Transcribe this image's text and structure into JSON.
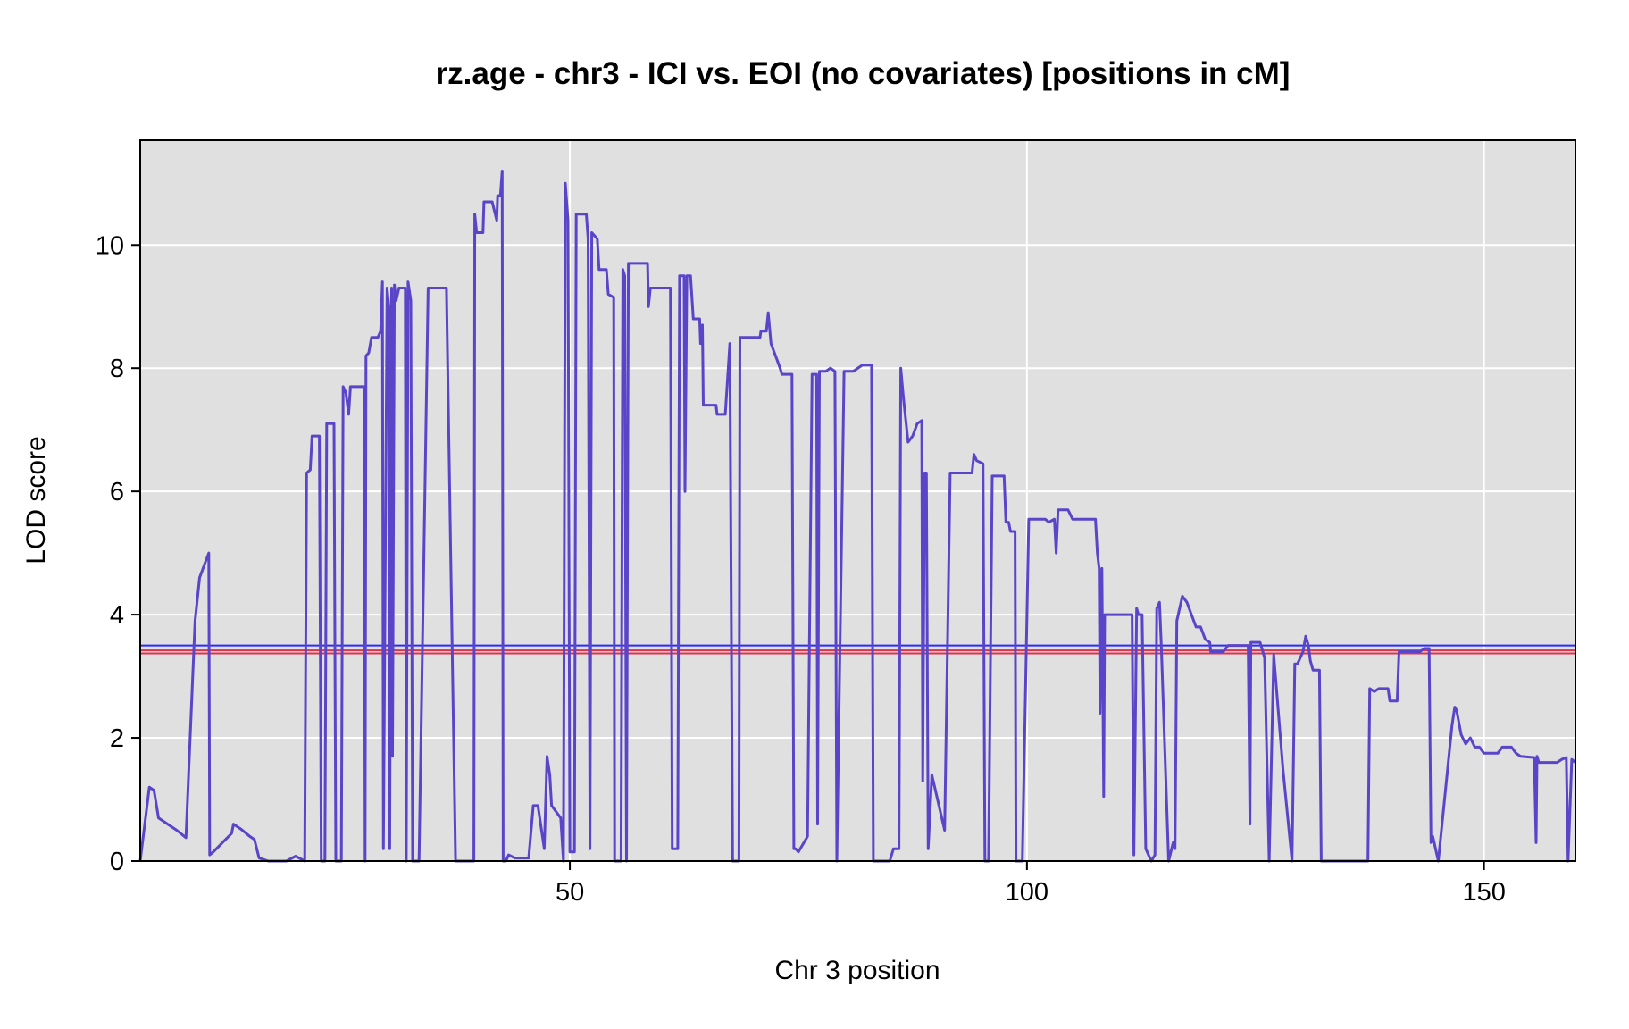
{
  "chart_data": {
    "type": "line",
    "title": "rz.age - chr3 - ICI vs. EOI (no covariates) [positions in cM]",
    "xlabel": "Chr 3 position",
    "ylabel": "LOD score",
    "xlim": [
      3,
      160
    ],
    "ylim": [
      0,
      11.7
    ],
    "x_ticks": [
      50,
      100,
      150
    ],
    "y_ticks": [
      0,
      2,
      4,
      6,
      8,
      10
    ],
    "grid": true,
    "colors": {
      "panel_background": "#e0e0e0",
      "grid": "#ffffff",
      "series": "#5a45c8",
      "threshold_blue": "#2a2aff",
      "threshold_red": "#e0304a"
    },
    "thresholds": [
      {
        "value": 3.5,
        "color": "#2a2aff"
      },
      {
        "value": 3.42,
        "color": "#e0304a"
      },
      {
        "value": 3.37,
        "color": "#e0304a"
      }
    ],
    "series": [
      {
        "points": [
          [
            3,
            0
          ],
          [
            4,
            1.2
          ],
          [
            4.5,
            1.15
          ],
          [
            5,
            0.7
          ],
          [
            6,
            0.6
          ],
          [
            7,
            0.5
          ],
          [
            8,
            0.38
          ],
          [
            9,
            3.9
          ],
          [
            9.5,
            4.6
          ],
          [
            10,
            4.8
          ],
          [
            10.5,
            5.0
          ],
          [
            10.6,
            0.1
          ],
          [
            11,
            0.15
          ],
          [
            12,
            0.3
          ],
          [
            13,
            0.45
          ],
          [
            13.2,
            0.6
          ],
          [
            14,
            0.52
          ],
          [
            15,
            0.4
          ],
          [
            15.5,
            0.35
          ],
          [
            16,
            0.05
          ],
          [
            17,
            0
          ],
          [
            19,
            0
          ],
          [
            20,
            0.08
          ],
          [
            21,
            0
          ],
          [
            21.2,
            6.3
          ],
          [
            21.6,
            6.35
          ],
          [
            21.8,
            6.9
          ],
          [
            22.6,
            6.9
          ],
          [
            22.8,
            0
          ],
          [
            23.2,
            0
          ],
          [
            23.4,
            7.1
          ],
          [
            24.2,
            7.1
          ],
          [
            24.4,
            0
          ],
          [
            25,
            0
          ],
          [
            25.2,
            7.7
          ],
          [
            25.5,
            7.6
          ],
          [
            25.8,
            7.25
          ],
          [
            26,
            7.7
          ],
          [
            27.5,
            7.7
          ],
          [
            27.6,
            0
          ],
          [
            27.7,
            8.2
          ],
          [
            28,
            8.25
          ],
          [
            28.3,
            8.5
          ],
          [
            29,
            8.5
          ],
          [
            29.3,
            8.6
          ],
          [
            29.5,
            9.4
          ],
          [
            29.6,
            0.2
          ],
          [
            30,
            9.3
          ],
          [
            30.2,
            9.0
          ],
          [
            30.3,
            0.2
          ],
          [
            30.5,
            9.3
          ],
          [
            30.6,
            1.7
          ],
          [
            30.8,
            9.35
          ],
          [
            31,
            9.1
          ],
          [
            31.3,
            9.3
          ],
          [
            32,
            9.3
          ],
          [
            32.1,
            0
          ],
          [
            32.3,
            9.4
          ],
          [
            32.6,
            9.1
          ],
          [
            32.8,
            0
          ],
          [
            33.5,
            0
          ],
          [
            34.5,
            9.3
          ],
          [
            36.5,
            9.3
          ],
          [
            37.5,
            0
          ],
          [
            38.5,
            0
          ],
          [
            39.5,
            0
          ],
          [
            39.6,
            10.5
          ],
          [
            39.8,
            10.2
          ],
          [
            40.5,
            10.2
          ],
          [
            40.6,
            10.7
          ],
          [
            41.5,
            10.7
          ],
          [
            42,
            10.4
          ],
          [
            42.1,
            10.8
          ],
          [
            42.4,
            10.8
          ],
          [
            42.6,
            11.2
          ],
          [
            42.7,
            0
          ],
          [
            43,
            0
          ],
          [
            43.3,
            0.1
          ],
          [
            44,
            0.05
          ],
          [
            45.5,
            0.05
          ],
          [
            46,
            0.9
          ],
          [
            46.5,
            0.9
          ],
          [
            47.2,
            0.2
          ],
          [
            47.5,
            1.7
          ],
          [
            47.8,
            1.4
          ],
          [
            48,
            0.9
          ],
          [
            49,
            0.7
          ],
          [
            49.3,
            0
          ],
          [
            49.5,
            11.0
          ],
          [
            49.8,
            10.4
          ],
          [
            50,
            0.15
          ],
          [
            50.5,
            0.15
          ],
          [
            50.7,
            10.5
          ],
          [
            51.8,
            10.5
          ],
          [
            52,
            10.1
          ],
          [
            52.2,
            0.2
          ],
          [
            52.4,
            10.2
          ],
          [
            53,
            10.1
          ],
          [
            53.2,
            9.6
          ],
          [
            54,
            9.6
          ],
          [
            54.2,
            9.2
          ],
          [
            54.8,
            9.15
          ],
          [
            54.9,
            0
          ],
          [
            55.6,
            0
          ],
          [
            55.8,
            9.6
          ],
          [
            56,
            9.5
          ],
          [
            56.2,
            0
          ],
          [
            56.4,
            9.7
          ],
          [
            58.5,
            9.7
          ],
          [
            58.6,
            9.0
          ],
          [
            58.8,
            9.3
          ],
          [
            61,
            9.3
          ],
          [
            61.2,
            0.2
          ],
          [
            61.8,
            0.2
          ],
          [
            62,
            9.5
          ],
          [
            62.5,
            9.5
          ],
          [
            62.6,
            6.0
          ],
          [
            62.8,
            9.5
          ],
          [
            63.2,
            9.5
          ],
          [
            63.5,
            8.8
          ],
          [
            64.2,
            8.8
          ],
          [
            64.3,
            8.4
          ],
          [
            64.5,
            8.7
          ],
          [
            64.6,
            7.4
          ],
          [
            66,
            7.4
          ],
          [
            66.1,
            7.25
          ],
          [
            67,
            7.25
          ],
          [
            67.5,
            8.4
          ],
          [
            67.8,
            0
          ],
          [
            68.5,
            0
          ],
          [
            68.6,
            8.5
          ],
          [
            70.8,
            8.5
          ],
          [
            70.9,
            8.6
          ],
          [
            71.5,
            8.6
          ],
          [
            71.7,
            8.9
          ],
          [
            72,
            8.4
          ],
          [
            72.5,
            8.2
          ],
          [
            73,
            8.0
          ],
          [
            73.2,
            7.9
          ],
          [
            74.3,
            7.9
          ],
          [
            74.5,
            0.2
          ],
          [
            74.7,
            0.2
          ],
          [
            75,
            0.15
          ],
          [
            76,
            0.4
          ],
          [
            76.5,
            7.9
          ],
          [
            77,
            7.9
          ],
          [
            77.1,
            0.6
          ],
          [
            77.3,
            7.95
          ],
          [
            78,
            7.95
          ],
          [
            78.5,
            8.0
          ],
          [
            79,
            7.95
          ],
          [
            79.2,
            0
          ],
          [
            80,
            7.95
          ],
          [
            81,
            7.95
          ],
          [
            82,
            8.05
          ],
          [
            83,
            8.05
          ],
          [
            83.2,
            0
          ],
          [
            85,
            0
          ],
          [
            85.4,
            0.2
          ],
          [
            86,
            0.2
          ],
          [
            86.2,
            8.0
          ],
          [
            86.5,
            7.5
          ],
          [
            87,
            6.8
          ],
          [
            87.5,
            6.9
          ],
          [
            88,
            7.1
          ],
          [
            88.5,
            7.15
          ],
          [
            88.6,
            1.3
          ],
          [
            88.8,
            6.3
          ],
          [
            89,
            6.3
          ],
          [
            89.2,
            0.2
          ],
          [
            89.6,
            1.4
          ],
          [
            91,
            0.5
          ],
          [
            91.6,
            6.3
          ],
          [
            94,
            6.3
          ],
          [
            94.2,
            6.6
          ],
          [
            94.5,
            6.5
          ],
          [
            95.2,
            6.45
          ],
          [
            95.4,
            0
          ],
          [
            95.8,
            0
          ],
          [
            96.2,
            6.25
          ],
          [
            97.5,
            6.25
          ],
          [
            97.7,
            5.5
          ],
          [
            98,
            5.5
          ],
          [
            98.2,
            5.35
          ],
          [
            98.7,
            5.35
          ],
          [
            98.8,
            0
          ],
          [
            99.5,
            0
          ],
          [
            100.2,
            5.55
          ],
          [
            102,
            5.55
          ],
          [
            102.4,
            5.5
          ],
          [
            103,
            5.55
          ],
          [
            103.2,
            5.0
          ],
          [
            103.4,
            5.7
          ],
          [
            104.5,
            5.7
          ],
          [
            105,
            5.55
          ],
          [
            107.5,
            5.55
          ],
          [
            107.7,
            5.0
          ],
          [
            107.9,
            4.75
          ],
          [
            108,
            2.4
          ],
          [
            108.2,
            4.75
          ],
          [
            108.4,
            1.05
          ],
          [
            108.5,
            4.0
          ],
          [
            111.5,
            4.0
          ],
          [
            111.7,
            0.1
          ],
          [
            112,
            4.1
          ],
          [
            112.2,
            4.0
          ],
          [
            112.6,
            4.0
          ],
          [
            113,
            0.2
          ],
          [
            113.6,
            0
          ],
          [
            114,
            0.1
          ],
          [
            114.2,
            4.1
          ],
          [
            114.5,
            4.2
          ],
          [
            114.7,
            3.5
          ],
          [
            115.5,
            0
          ],
          [
            116,
            0.3
          ],
          [
            116.2,
            0.2
          ],
          [
            116.4,
            3.9
          ],
          [
            117,
            4.3
          ],
          [
            117.5,
            4.2
          ],
          [
            118,
            4.0
          ],
          [
            118.5,
            3.8
          ],
          [
            119,
            3.8
          ],
          [
            119.5,
            3.6
          ],
          [
            120,
            3.55
          ],
          [
            120.1,
            3.4
          ],
          [
            121.5,
            3.4
          ],
          [
            122,
            3.5
          ],
          [
            124.2,
            3.5
          ],
          [
            124.4,
            0.6
          ],
          [
            124.5,
            3.55
          ],
          [
            125.5,
            3.55
          ],
          [
            126,
            3.3
          ],
          [
            126.5,
            0
          ],
          [
            127,
            3.35
          ],
          [
            128,
            1.5
          ],
          [
            129,
            0
          ],
          [
            129.3,
            3.2
          ],
          [
            129.6,
            3.2
          ],
          [
            130.2,
            3.4
          ],
          [
            130.5,
            3.65
          ],
          [
            130.8,
            3.5
          ],
          [
            131,
            3.25
          ],
          [
            131.3,
            3.1
          ],
          [
            132,
            3.1
          ],
          [
            132.2,
            0
          ],
          [
            137,
            0
          ],
          [
            137.3,
            0
          ],
          [
            137.5,
            2.8
          ],
          [
            138,
            2.75
          ],
          [
            138.5,
            2.8
          ],
          [
            139.5,
            2.8
          ],
          [
            139.7,
            2.6
          ],
          [
            140.5,
            2.6
          ],
          [
            140.7,
            3.4
          ],
          [
            143,
            3.4
          ],
          [
            143.5,
            3.45
          ],
          [
            144,
            3.45
          ],
          [
            144.2,
            0.3
          ],
          [
            144.4,
            0.4
          ],
          [
            145,
            0
          ],
          [
            146.5,
            2.2
          ],
          [
            146.8,
            2.5
          ],
          [
            147,
            2.45
          ],
          [
            147.5,
            2.05
          ],
          [
            148,
            1.9
          ],
          [
            148.5,
            2.0
          ],
          [
            149,
            1.85
          ],
          [
            149.5,
            1.85
          ],
          [
            150,
            1.75
          ],
          [
            150.5,
            1.75
          ],
          [
            151.5,
            1.75
          ],
          [
            152,
            1.85
          ],
          [
            153,
            1.85
          ],
          [
            153.5,
            1.75
          ],
          [
            154,
            1.7
          ],
          [
            155.5,
            1.68
          ],
          [
            155.7,
            0.3
          ],
          [
            155.8,
            1.7
          ],
          [
            156,
            1.6
          ],
          [
            158,
            1.6
          ],
          [
            158.5,
            1.65
          ],
          [
            159,
            1.68
          ],
          [
            159.2,
            0
          ],
          [
            159.6,
            1.65
          ],
          [
            160,
            1.6
          ]
        ]
      }
    ]
  }
}
